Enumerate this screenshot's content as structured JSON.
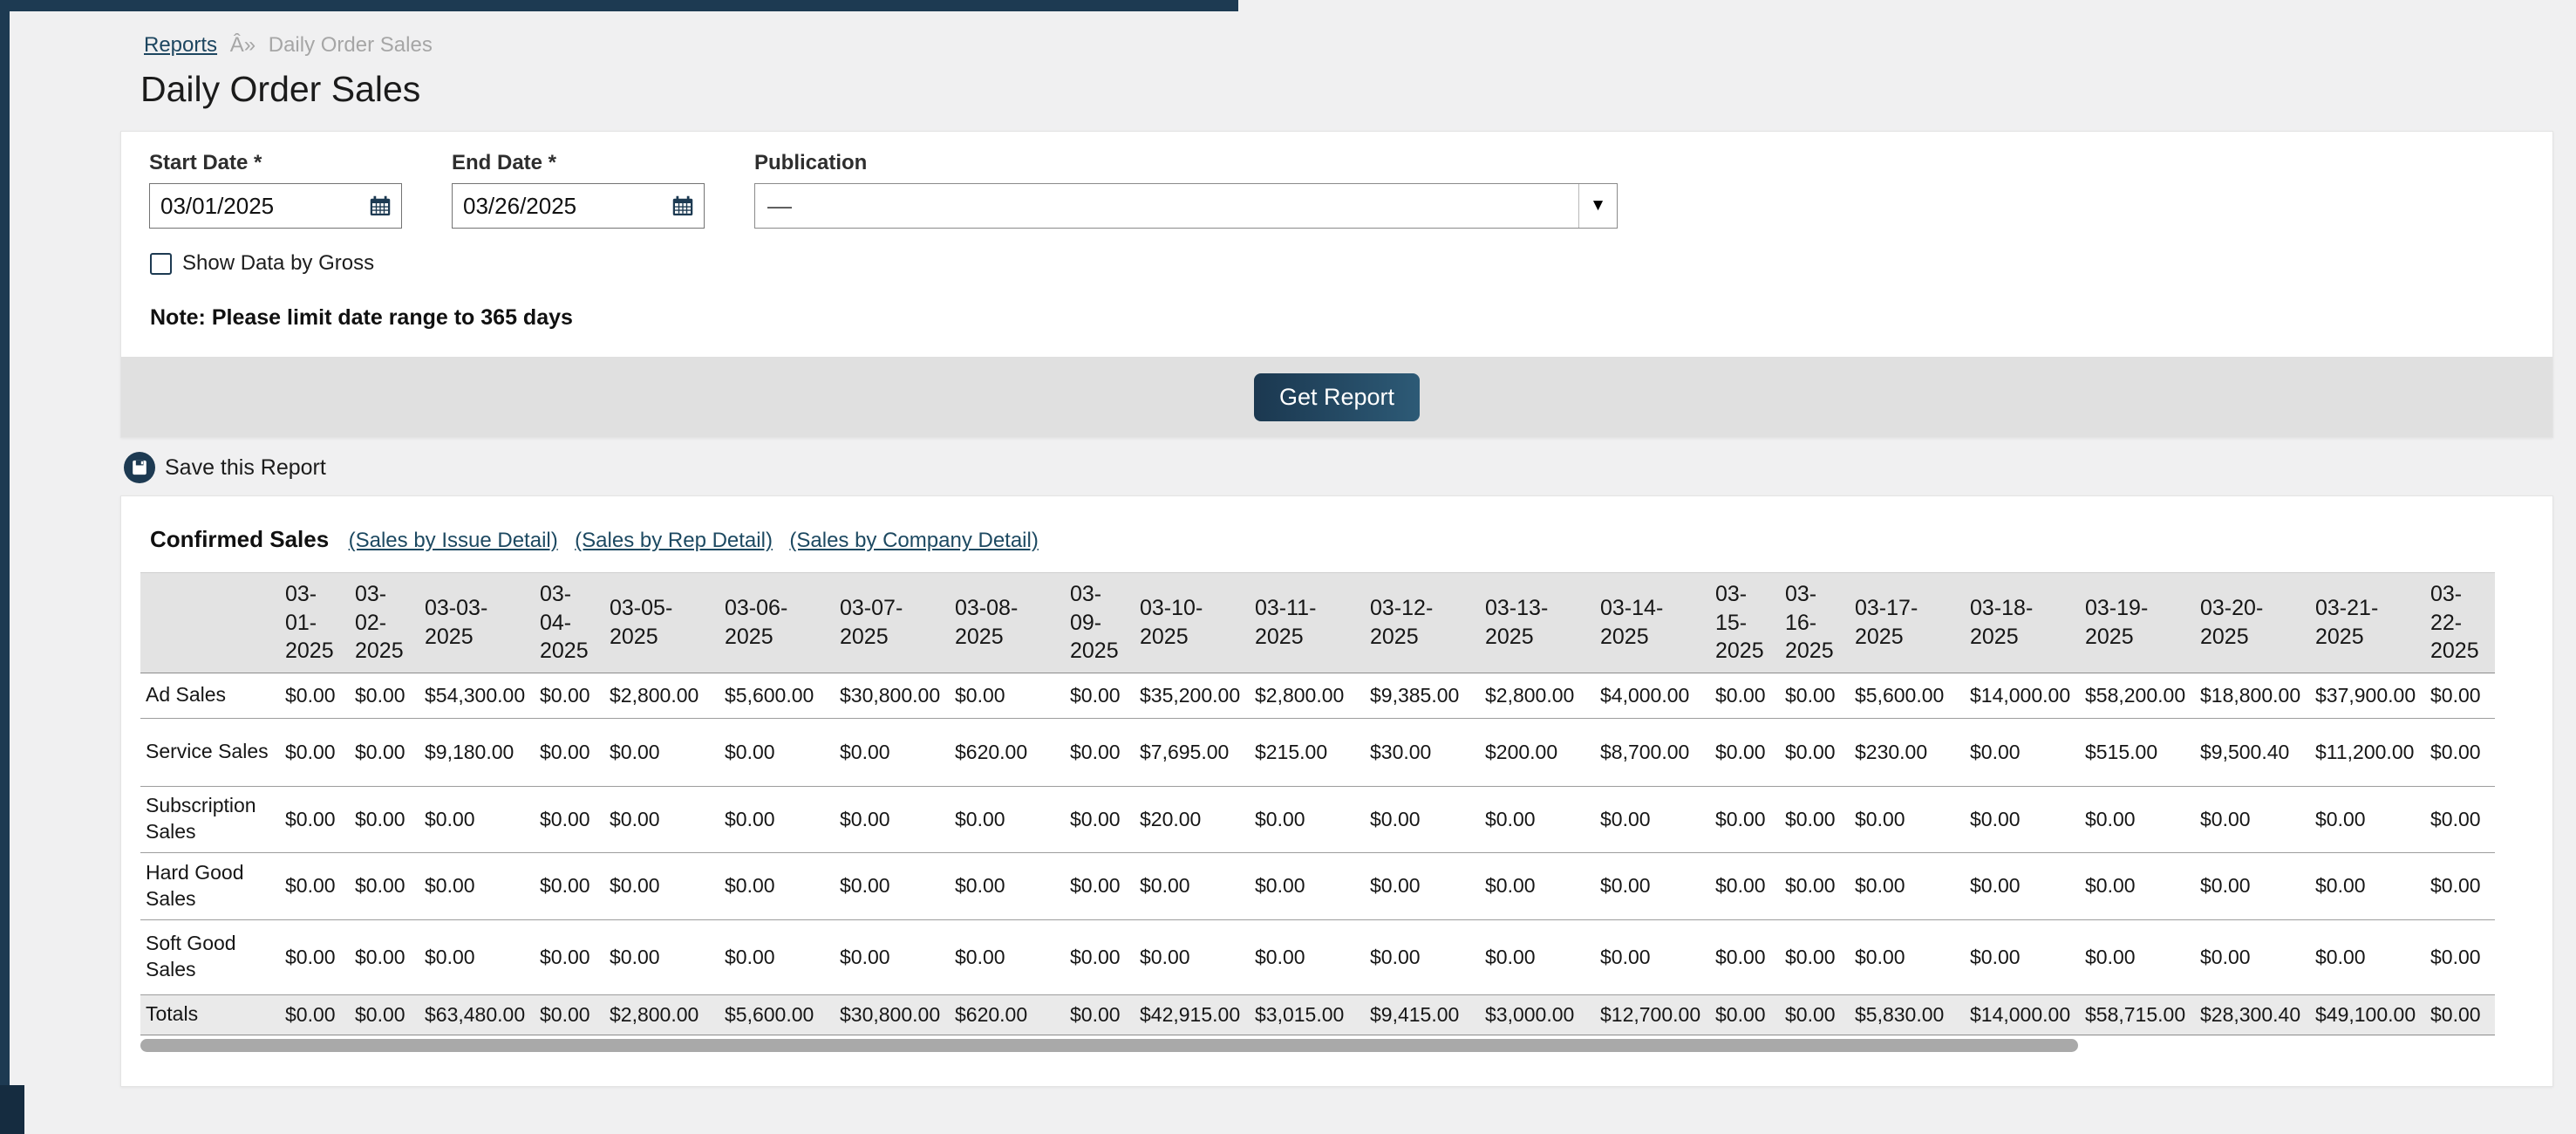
{
  "breadcrumb": {
    "reports": "Reports",
    "separator": "Â»",
    "current": "Daily Order Sales"
  },
  "title": "Daily Order Sales",
  "form": {
    "start_date": {
      "label": "Start Date *",
      "value": "03/01/2025"
    },
    "end_date": {
      "label": "End Date *",
      "value": "03/26/2025"
    },
    "publication": {
      "label": "Publication",
      "value": "—"
    },
    "show_gross": {
      "label": "Show Data by Gross",
      "checked": false
    },
    "note": "Note: Please limit date range to 365 days",
    "get_report_label": "Get Report"
  },
  "save_report": {
    "label": "Save this Report"
  },
  "report": {
    "title": "Confirmed Sales",
    "links": [
      "(Sales by Issue Detail)",
      "(Sales by Rep Detail)",
      "(Sales by Company Detail)"
    ],
    "table": {
      "date_columns": [
        "03-01-2025",
        "03-02-2025",
        "03-03-2025",
        "03-04-2025",
        "03-05-2025",
        "03-06-2025",
        "03-07-2025",
        "03-08-2025",
        "03-09-2025",
        "03-10-2025",
        "03-11-2025",
        "03-12-2025",
        "03-13-2025",
        "03-14-2025",
        "03-15-2025",
        "03-16-2025",
        "03-17-2025",
        "03-18-2025",
        "03-19-2025",
        "03-20-2025",
        "03-21-2025",
        "03-22-2025"
      ],
      "rows": [
        {
          "label": "Ad Sales",
          "values": [
            "$0.00",
            "$0.00",
            "$54,300.00",
            "$0.00",
            "$2,800.00",
            "$5,600.00",
            "$30,800.00",
            "$0.00",
            "$0.00",
            "$35,200.00",
            "$2,800.00",
            "$9,385.00",
            "$2,800.00",
            "$4,000.00",
            "$0.00",
            "$0.00",
            "$5,600.00",
            "$14,000.00",
            "$58,200.00",
            "$18,800.00",
            "$37,900.00",
            "$0.00"
          ]
        },
        {
          "label": "Service Sales",
          "values": [
            "$0.00",
            "$0.00",
            "$9,180.00",
            "$0.00",
            "$0.00",
            "$0.00",
            "$0.00",
            "$620.00",
            "$0.00",
            "$7,695.00",
            "$215.00",
            "$30.00",
            "$200.00",
            "$8,700.00",
            "$0.00",
            "$0.00",
            "$230.00",
            "$0.00",
            "$515.00",
            "$9,500.40",
            "$11,200.00",
            "$0.00"
          ]
        },
        {
          "label": "Subscription Sales",
          "values": [
            "$0.00",
            "$0.00",
            "$0.00",
            "$0.00",
            "$0.00",
            "$0.00",
            "$0.00",
            "$0.00",
            "$0.00",
            "$20.00",
            "$0.00",
            "$0.00",
            "$0.00",
            "$0.00",
            "$0.00",
            "$0.00",
            "$0.00",
            "$0.00",
            "$0.00",
            "$0.00",
            "$0.00",
            "$0.00"
          ]
        },
        {
          "label": "Hard Good Sales",
          "values": [
            "$0.00",
            "$0.00",
            "$0.00",
            "$0.00",
            "$0.00",
            "$0.00",
            "$0.00",
            "$0.00",
            "$0.00",
            "$0.00",
            "$0.00",
            "$0.00",
            "$0.00",
            "$0.00",
            "$0.00",
            "$0.00",
            "$0.00",
            "$0.00",
            "$0.00",
            "$0.00",
            "$0.00",
            "$0.00"
          ]
        },
        {
          "label": "Soft Good Sales",
          "values": [
            "$0.00",
            "$0.00",
            "$0.00",
            "$0.00",
            "$0.00",
            "$0.00",
            "$0.00",
            "$0.00",
            "$0.00",
            "$0.00",
            "$0.00",
            "$0.00",
            "$0.00",
            "$0.00",
            "$0.00",
            "$0.00",
            "$0.00",
            "$0.00",
            "$0.00",
            "$0.00",
            "$0.00",
            "$0.00"
          ]
        }
      ],
      "totals": {
        "label": "Totals",
        "values": [
          "$0.00",
          "$0.00",
          "$63,480.00",
          "$0.00",
          "$2,800.00",
          "$5,600.00",
          "$30,800.00",
          "$620.00",
          "$0.00",
          "$42,915.00",
          "$3,015.00",
          "$9,415.00",
          "$3,000.00",
          "$12,700.00",
          "$0.00",
          "$0.00",
          "$5,830.00",
          "$14,000.00",
          "$58,715.00",
          "$28,300.40",
          "$49,100.00",
          "$0.00"
        ]
      }
    }
  },
  "colors": {
    "navy": "#1d3a52",
    "link": "#1d4961",
    "page_bg": "#f0f0f1",
    "band_bg": "#e0e0e0",
    "header_bg": "#e3e3e3",
    "totals_bg": "#eaeaea",
    "scroll_thumb": "#a9a9a9"
  }
}
